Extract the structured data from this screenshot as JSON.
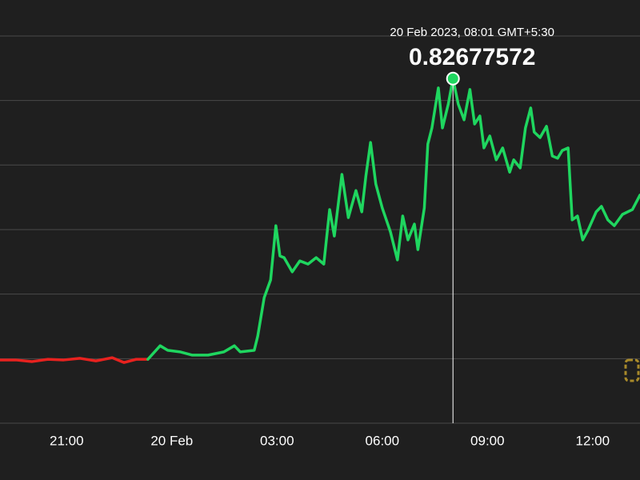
{
  "chart_data": {
    "type": "line",
    "annotation": "20 Feb 2023, 08:01 GMT+5:30",
    "ylim": [
      0.72,
      0.85
    ],
    "yticks": [
      0.72,
      0.74,
      0.76,
      0.78,
      0.8,
      0.82,
      0.84
    ],
    "grid": true,
    "xlim": [
      "2023-02-19T19:06",
      "2023-02-20T13:21"
    ],
    "xticks": [
      {
        "value": "2023-02-19T21:00",
        "label": "21:00"
      },
      {
        "value": "2023-02-20T00:00",
        "label": "20 Feb"
      },
      {
        "value": "2023-02-20T03:00",
        "label": "03:00"
      },
      {
        "value": "2023-02-20T06:00",
        "label": "06:00"
      },
      {
        "value": "2023-02-20T09:00",
        "label": "09:00"
      },
      {
        "value": "2023-02-20T12:00",
        "label": "12:00"
      }
    ],
    "series": [
      {
        "color": "#e8221f",
        "x": [
          "2023-02-19T19:06",
          "2023-02-19T19:33",
          "2023-02-19T20:01",
          "2023-02-19T20:28",
          "2023-02-19T20:55",
          "2023-02-19T21:23",
          "2023-02-19T21:50",
          "2023-02-19T22:18",
          "2023-02-19T22:38",
          "2023-02-19T22:59",
          "2023-02-19T23:19"
        ],
        "values": [
          0.7396,
          0.7396,
          0.7391,
          0.7398,
          0.7396,
          0.7401,
          0.7393,
          0.7403,
          0.7388,
          0.7398,
          0.7398
        ]
      },
      {
        "color": "#1fd65f",
        "x": [
          "2023-02-19T23:19",
          "2023-02-19T23:40",
          "2023-02-19T23:53",
          "2023-02-20T00:14",
          "2023-02-20T00:35",
          "2023-02-20T01:02",
          "2023-02-20T01:29",
          "2023-02-20T01:47",
          "2023-02-20T01:57",
          "2023-02-20T02:21",
          "2023-02-20T02:27",
          "2023-02-20T02:38",
          "2023-02-20T02:49",
          "2023-02-20T02:58",
          "2023-02-20T03:05",
          "2023-02-20T03:12",
          "2023-02-20T03:26",
          "2023-02-20T03:39",
          "2023-02-20T03:53",
          "2023-02-20T04:07",
          "2023-02-20T04:20",
          "2023-02-20T04:30",
          "2023-02-20T04:38",
          "2023-02-20T04:51",
          "2023-02-20T05:02",
          "2023-02-20T05:15",
          "2023-02-20T05:25",
          "2023-02-20T05:32",
          "2023-02-20T05:40",
          "2023-02-20T05:49",
          "2023-02-20T06:00",
          "2023-02-20T06:14",
          "2023-02-20T06:26",
          "2023-02-20T06:35",
          "2023-02-20T06:44",
          "2023-02-20T06:55",
          "2023-02-20T07:01",
          "2023-02-20T07:12",
          "2023-02-20T07:18",
          "2023-02-20T07:25",
          "2023-02-20T07:36",
          "2023-02-20T07:43",
          "2023-02-20T07:53",
          "2023-02-20T08:01",
          "2023-02-20T08:10",
          "2023-02-20T08:20",
          "2023-02-20T08:30",
          "2023-02-20T08:38",
          "2023-02-20T08:47",
          "2023-02-20T08:54",
          "2023-02-20T09:04",
          "2023-02-20T09:15",
          "2023-02-20T09:26",
          "2023-02-20T09:38",
          "2023-02-20T09:45",
          "2023-02-20T09:56",
          "2023-02-20T10:05",
          "2023-02-20T10:14",
          "2023-02-20T10:20",
          "2023-02-20T10:30",
          "2023-02-20T10:41",
          "2023-02-20T10:51",
          "2023-02-20T11:00",
          "2023-02-20T11:08",
          "2023-02-20T11:18",
          "2023-02-20T11:25",
          "2023-02-20T11:34",
          "2023-02-20T11:43",
          "2023-02-20T11:52",
          "2023-02-20T12:06",
          "2023-02-20T12:15",
          "2023-02-20T12:26",
          "2023-02-20T12:37",
          "2023-02-20T12:51",
          "2023-02-20T13:08",
          "2023-02-20T13:21"
        ],
        "values": [
          0.7398,
          0.744,
          0.7426,
          0.7421,
          0.7411,
          0.7411,
          0.7421,
          0.744,
          0.7421,
          0.7426,
          0.747,
          0.7589,
          0.7644,
          0.7812,
          0.7718,
          0.7713,
          0.7669,
          0.7703,
          0.7693,
          0.7713,
          0.7693,
          0.7862,
          0.778,
          0.7971,
          0.7837,
          0.7921,
          0.7855,
          0.7966,
          0.807,
          0.7941,
          0.7867,
          0.7793,
          0.7706,
          0.7842,
          0.7768,
          0.7817,
          0.7738,
          0.7867,
          0.8065,
          0.8115,
          0.8239,
          0.8115,
          0.8189,
          0.82677572,
          0.8189,
          0.814,
          0.8234,
          0.8127,
          0.8152,
          0.8053,
          0.809,
          0.8016,
          0.8053,
          0.7978,
          0.8016,
          0.7991,
          0.8115,
          0.8177,
          0.8102,
          0.8085,
          0.812,
          0.8028,
          0.8021,
          0.8045,
          0.8053,
          0.783,
          0.7842,
          0.7768,
          0.7798,
          0.7855,
          0.7872,
          0.783,
          0.7812,
          0.7847,
          0.7862,
          0.7907
        ]
      }
    ]
  }
}
